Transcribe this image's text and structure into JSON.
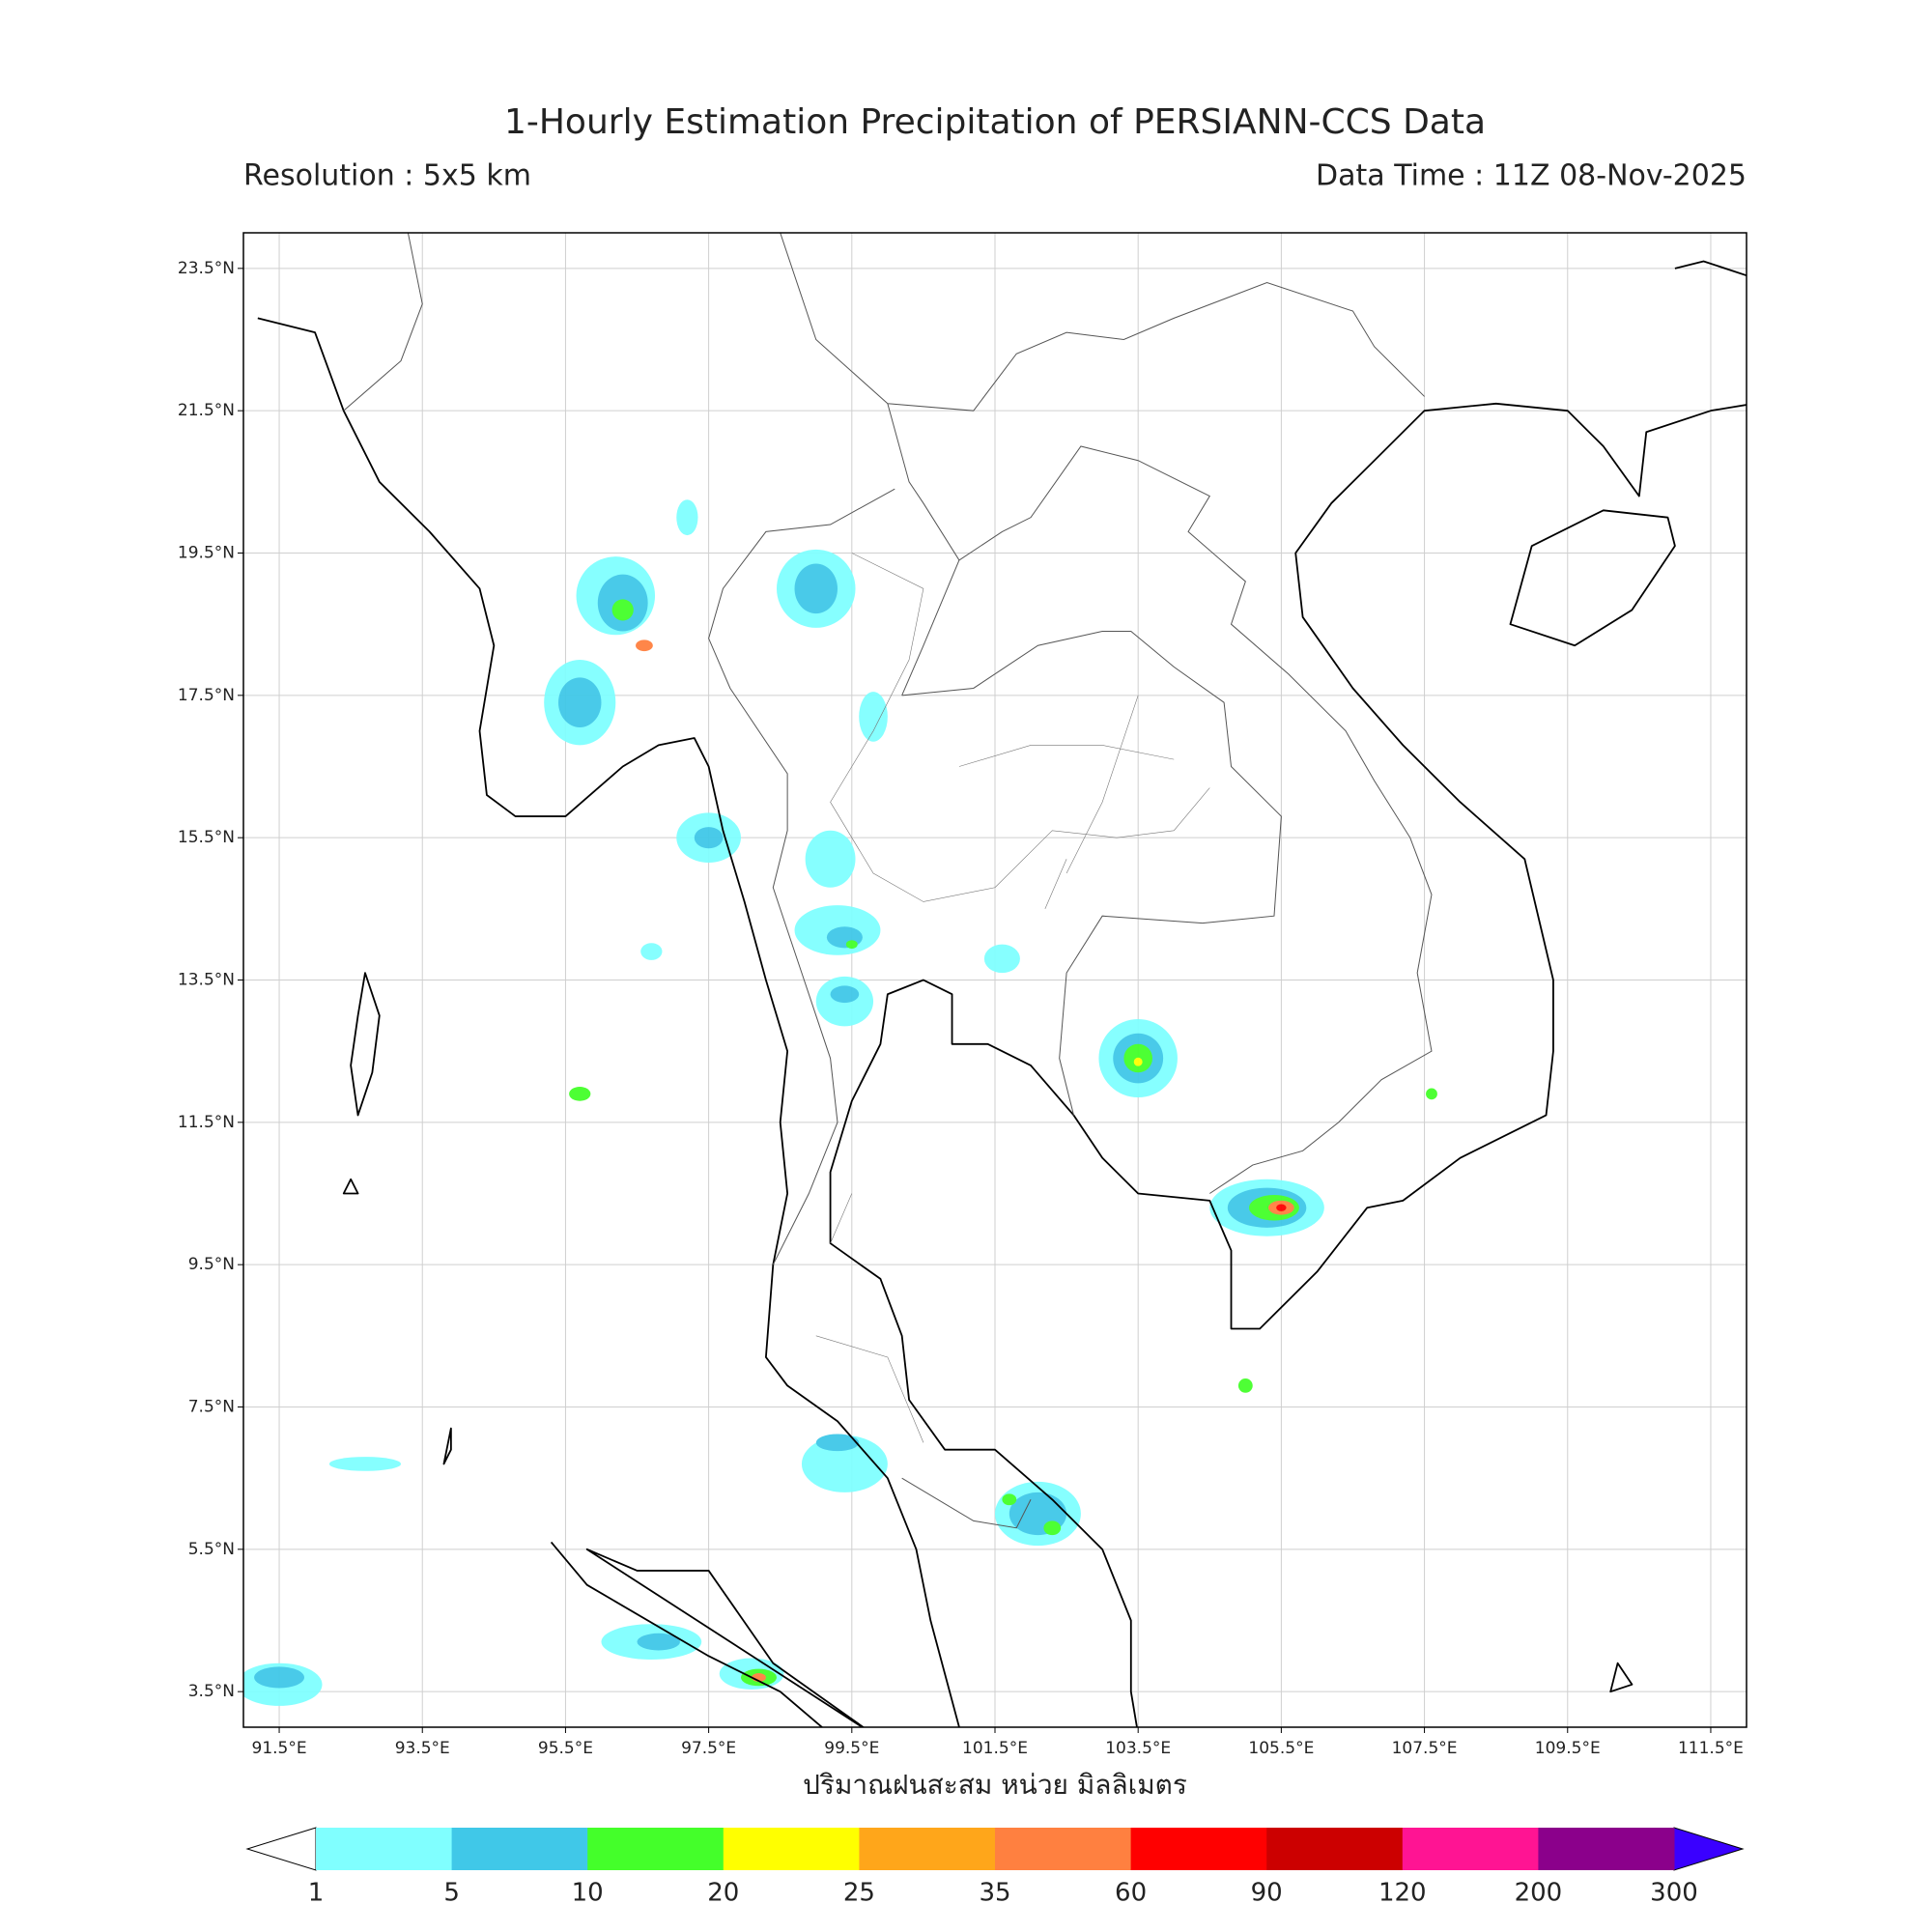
{
  "title": "1-Hourly Estimation Precipitation of PERSIANN-CCS Data",
  "resolution": "Resolution : 5x5 km",
  "data_time": "Data Time : 11Z 08-Nov-2025",
  "xlabel": "ปริมาณฝนสะสม หน่วย มิลลิเมตร",
  "map": {
    "xlim": [
      91,
      112
    ],
    "ylim": [
      3,
      24
    ],
    "grid": true,
    "xticks": [
      {
        "value": 91.5,
        "label": "91.5°E"
      },
      {
        "value": 93.5,
        "label": "93.5°E"
      },
      {
        "value": 95.5,
        "label": "95.5°E"
      },
      {
        "value": 97.5,
        "label": "97.5°E"
      },
      {
        "value": 99.5,
        "label": "99.5°E"
      },
      {
        "value": 101.5,
        "label": "101.5°E"
      },
      {
        "value": 103.5,
        "label": "103.5°E"
      },
      {
        "value": 105.5,
        "label": "105.5°E"
      },
      {
        "value": 107.5,
        "label": "107.5°E"
      },
      {
        "value": 109.5,
        "label": "109.5°E"
      },
      {
        "value": 111.5,
        "label": "111.5°E"
      }
    ],
    "yticks": [
      {
        "value": 3.5,
        "label": "3.5°N"
      },
      {
        "value": 5.5,
        "label": "5.5°N"
      },
      {
        "value": 7.5,
        "label": "7.5°N"
      },
      {
        "value": 9.5,
        "label": "9.5°N"
      },
      {
        "value": 11.5,
        "label": "11.5°N"
      },
      {
        "value": 13.5,
        "label": "13.5°N"
      },
      {
        "value": 15.5,
        "label": "15.5°N"
      },
      {
        "value": 17.5,
        "label": "17.5°N"
      },
      {
        "value": 19.5,
        "label": "19.5°N"
      },
      {
        "value": 21.5,
        "label": "21.5°N"
      },
      {
        "value": 23.5,
        "label": "23.5°N"
      }
    ]
  },
  "colorbar": {
    "levels": [
      1,
      5,
      10,
      20,
      25,
      35,
      60,
      90,
      120,
      200,
      300
    ],
    "colors": [
      "#80ffff",
      "#40c8e8",
      "#44ff2a",
      "#ffff00",
      "#ffa61a",
      "#ff8040",
      "#ff0000",
      "#cc0000",
      "#ff1493",
      "#8b008b"
    ],
    "under_color": "#ffffff",
    "over_color": "#3a00ff"
  }
}
